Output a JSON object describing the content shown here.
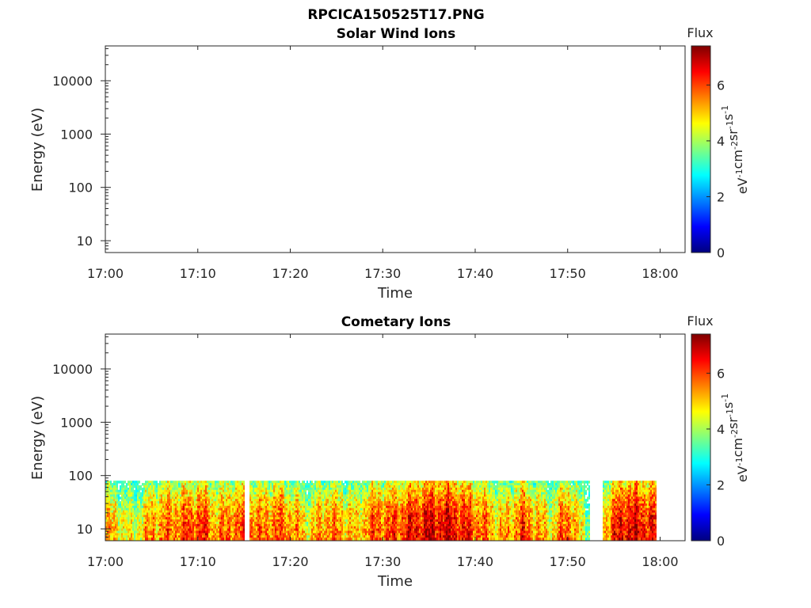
{
  "figure": {
    "title": "RPCICA150525T17.PNG"
  },
  "colorbar": {
    "label": "Flux",
    "unit_parts": [
      {
        "t": "eV"
      },
      {
        "t": "-1",
        "sup": true
      },
      {
        "t": "cm"
      },
      {
        "t": "-2",
        "sup": true
      },
      {
        "t": "sr"
      },
      {
        "t": "-1",
        "sup": true
      },
      {
        "t": "s"
      },
      {
        "t": "-1",
        "sup": true
      }
    ],
    "ticks": [
      0,
      2,
      4,
      6
    ],
    "range": [
      0,
      7.4
    ],
    "colormap": "jet"
  },
  "chart_data": [
    {
      "type": "heatmap",
      "title": "Solar Wind Ions",
      "xlabel": "Time",
      "ylabel": "Energy (eV)",
      "x_ticks": [
        "17:00",
        "17:10",
        "17:20",
        "17:30",
        "17:40",
        "17:50",
        "18:00"
      ],
      "x_range_min": [
        0,
        63
      ],
      "y_scale": "log",
      "y_range_eV": [
        6,
        45000
      ],
      "y_ticks": [
        {
          "label": "10",
          "v": 10
        },
        {
          "label": "100",
          "v": 100
        },
        {
          "label": "1000",
          "v": 1000
        },
        {
          "label": "10000",
          "v": 10000
        }
      ],
      "grid": false,
      "data": "empty (no flux recorded)"
    },
    {
      "type": "heatmap",
      "title": "Cometary Ions",
      "xlabel": "Time",
      "ylabel": "Energy (eV)",
      "x_ticks": [
        "17:00",
        "17:10",
        "17:20",
        "17:30",
        "17:40",
        "17:50",
        "18:00"
      ],
      "x_range_min": [
        0,
        63
      ],
      "y_scale": "log",
      "y_range_eV": [
        6,
        45000
      ],
      "y_ticks": [
        {
          "label": "10",
          "v": 10
        },
        {
          "label": "100",
          "v": 100
        },
        {
          "label": "1000",
          "v": 1000
        },
        {
          "label": "10000",
          "v": 10000
        }
      ],
      "grid": false,
      "energy_range_eV": [
        6,
        80
      ],
      "data_gaps_min": [
        [
          15.0,
          15.5
        ],
        [
          52.4,
          53.7
        ],
        [
          59.5,
          63
        ]
      ],
      "flux_profile": [
        {
          "t": 0,
          "level": 5.2
        },
        {
          "t": 3,
          "level": 4.4
        },
        {
          "t": 5,
          "level": 5.5
        },
        {
          "t": 8,
          "level": 5.8
        },
        {
          "t": 10,
          "level": 6.2
        },
        {
          "t": 12,
          "level": 5.4
        },
        {
          "t": 14,
          "level": 6.0
        },
        {
          "t": 16,
          "level": 5.6
        },
        {
          "t": 19,
          "level": 5.9
        },
        {
          "t": 22,
          "level": 4.8
        },
        {
          "t": 24,
          "level": 5.7
        },
        {
          "t": 27,
          "level": 5.0
        },
        {
          "t": 29,
          "level": 5.9
        },
        {
          "t": 31,
          "level": 6.0
        },
        {
          "t": 34,
          "level": 6.6
        },
        {
          "t": 37,
          "level": 6.8
        },
        {
          "t": 40,
          "level": 6.0
        },
        {
          "t": 43,
          "level": 5.0
        },
        {
          "t": 45,
          "level": 6.1
        },
        {
          "t": 48,
          "level": 4.8
        },
        {
          "t": 50,
          "level": 6.0
        },
        {
          "t": 52,
          "level": 4.0
        },
        {
          "t": 54,
          "level": 5.5
        },
        {
          "t": 56,
          "level": 6.8
        },
        {
          "t": 59,
          "level": 6.4
        }
      ]
    }
  ]
}
